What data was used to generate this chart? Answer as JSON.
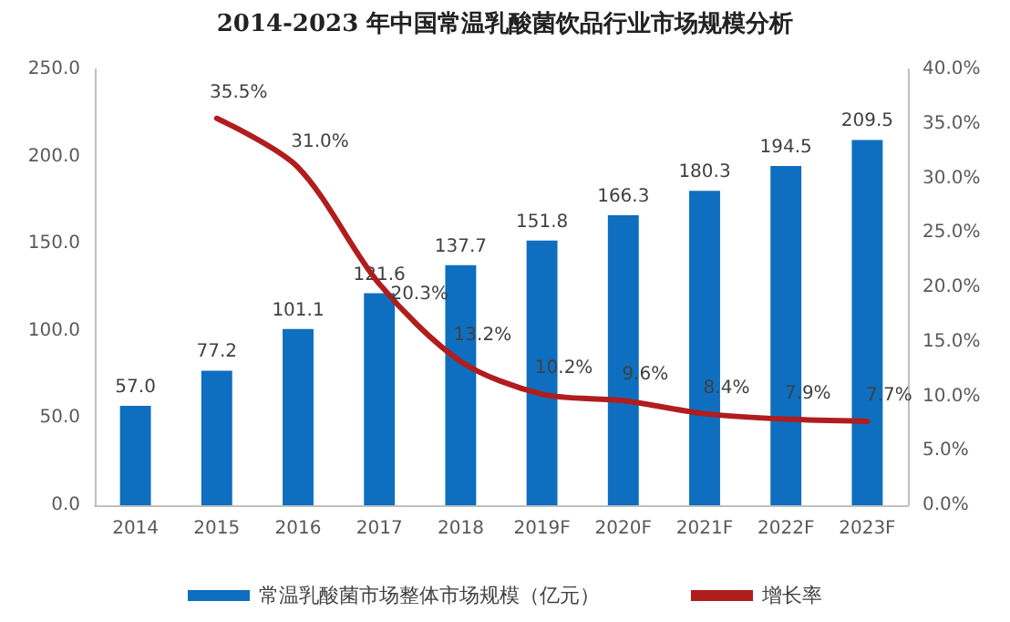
{
  "chart_data": {
    "type": "bar",
    "title": "2014-2023 年中国常温乳酸菌饮品行业市场规模分析",
    "categories": [
      "2014",
      "2015",
      "2016",
      "2017",
      "2018",
      "2019F",
      "2020F",
      "2021F",
      "2022F",
      "2023F"
    ],
    "series": [
      {
        "name": "常温乳酸菌市场整体市场规模（亿元）",
        "type": "bar",
        "color": "#0e6ebf",
        "values": [
          57.0,
          77.2,
          101.1,
          121.6,
          137.7,
          151.8,
          166.3,
          180.3,
          194.5,
          209.5
        ],
        "value_labels": [
          "57.0",
          "77.2",
          "101.1",
          "121.6",
          "137.7",
          "151.8",
          "166.3",
          "180.3",
          "194.5",
          "209.5"
        ]
      },
      {
        "name": "增长率",
        "type": "line",
        "axis": "y2",
        "color": "#b01d1d",
        "marker": "none",
        "line_style": "solid",
        "values": [
          null,
          35.5,
          31.0,
          20.3,
          13.2,
          10.2,
          9.6,
          8.4,
          7.9,
          7.7
        ],
        "value_labels": [
          null,
          "35.5%",
          "31.0%",
          "20.3%",
          "13.2%",
          "10.2%",
          "9.6%",
          "8.4%",
          "7.9%",
          "7.7%"
        ]
      }
    ],
    "ylim": [
      0,
      250
    ],
    "yticks": [
      {
        "value": 0,
        "label": "0.0"
      },
      {
        "value": 50,
        "label": "50.0"
      },
      {
        "value": 100,
        "label": "100.0"
      },
      {
        "value": 150,
        "label": "150.0"
      },
      {
        "value": 200,
        "label": "200.0"
      },
      {
        "value": 250,
        "label": "250.0"
      }
    ],
    "y2lim": [
      0,
      40
    ],
    "y2ticks": [
      {
        "value": 0,
        "label": "0.0%"
      },
      {
        "value": 5,
        "label": "5.0%"
      },
      {
        "value": 10,
        "label": "10.0%"
      },
      {
        "value": 15,
        "label": "15.0%"
      },
      {
        "value": 20,
        "label": "20.0%"
      },
      {
        "value": 25,
        "label": "25.0%"
      },
      {
        "value": 30,
        "label": "30.0%"
      },
      {
        "value": 35,
        "label": "35.0%"
      },
      {
        "value": 40,
        "label": "40.0%"
      }
    ],
    "grid": false,
    "legend": "bottom"
  }
}
